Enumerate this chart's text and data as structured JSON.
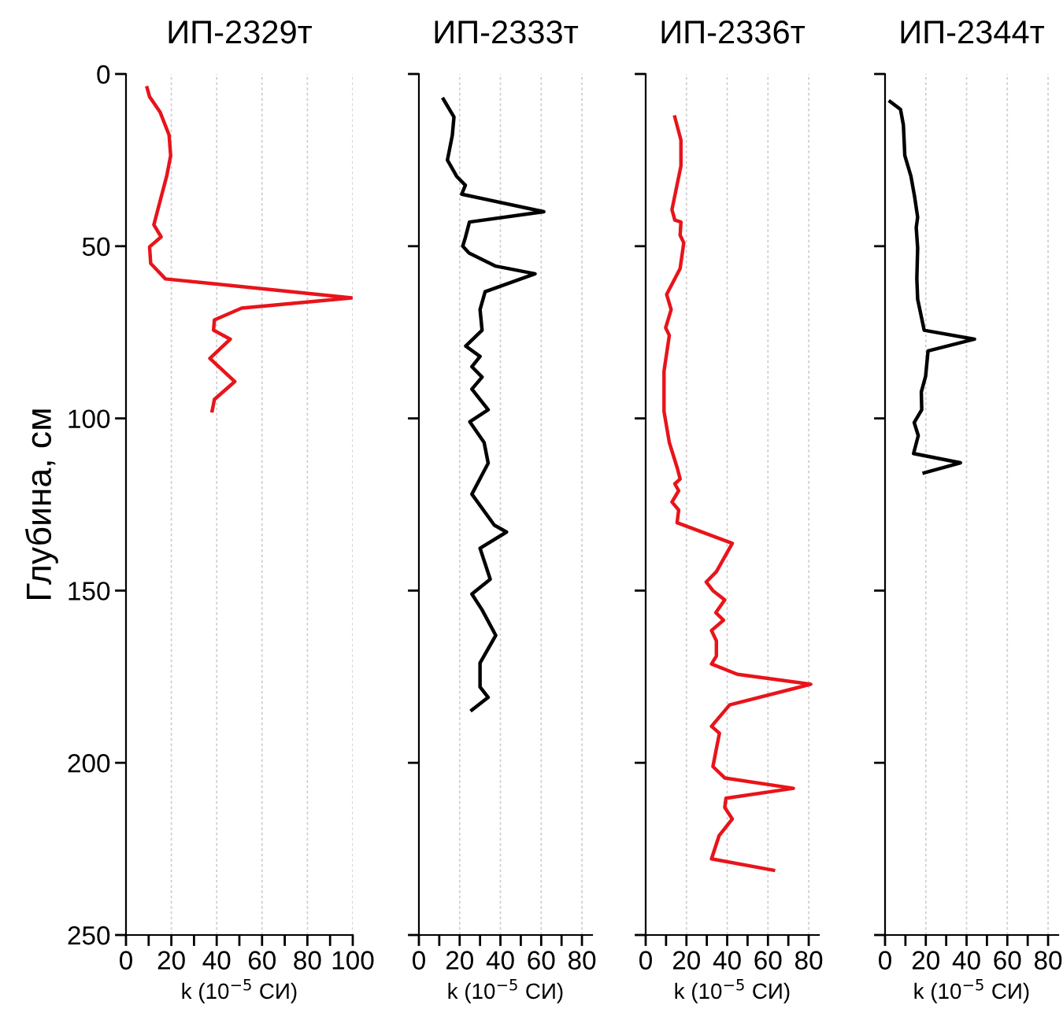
{
  "chart_data": [
    {
      "type": "line",
      "title": "ИП-2329т",
      "xlabel": "k (10$^{−5}$ СИ)",
      "ylabel": "Глубина, см",
      "xlim": [
        0,
        100
      ],
      "xticks": [
        0,
        {
          "value": 10,
          "label": null
        },
        20,
        {
          "value": 30,
          "label": null
        },
        40,
        {
          "value": 50,
          "label": null
        },
        60,
        {
          "value": 70,
          "label": null
        },
        80,
        {
          "value": 90,
          "label": null
        },
        100
      ],
      "ylim": [
        250,
        0
      ],
      "yticks": [
        0,
        50,
        100,
        150,
        200,
        250
      ],
      "grid": "x",
      "legend": false,
      "series": [
        {
          "color": "#e8141b",
          "x": [
            9.3,
            10.4,
            15,
            19,
            19.7,
            18,
            15,
            12.3,
            15.5,
            10.4,
            10.9,
            17.4,
            99.5,
            51,
            39,
            38.6,
            46,
            37,
            48,
            39,
            38
          ],
          "values": [
            4,
            6.6,
            11,
            17.7,
            23.7,
            29.5,
            37,
            43.8,
            47.3,
            50.2,
            55,
            59.5,
            65,
            68,
            71.4,
            74.4,
            77,
            82.6,
            89.3,
            94.5,
            97.8
          ]
        }
      ]
    },
    {
      "type": "line",
      "title": "ИП-2333т",
      "xlabel": "k (10$^{−5}$ СИ)",
      "xlim": [
        0,
        85
      ],
      "xticks": [
        0,
        {
          "value": 10,
          "label": null
        },
        20,
        {
          "value": 30,
          "label": null
        },
        40,
        {
          "value": 50,
          "label": null
        },
        60,
        {
          "value": 70,
          "label": null
        },
        80
      ],
      "ylim": [
        250,
        0
      ],
      "yticks": [
        0,
        50,
        100,
        150,
        200,
        250
      ],
      "tick_labels": "x",
      "grid": "x",
      "legend": false,
      "series": [
        {
          "color": "#000000",
          "x": [
            12,
            17.2,
            16.4,
            14,
            18.5,
            22.8,
            21,
            61.3,
            24.8,
            22.8,
            21.5,
            24.6,
            37.7,
            57,
            32.5,
            30,
            31,
            23,
            30,
            26,
            31,
            26,
            34,
            25,
            32,
            34,
            26,
            37,
            43,
            30,
            35,
            26,
            31,
            37.7,
            30,
            30,
            34,
            26
          ],
          "values": [
            7.3,
            12.5,
            17.8,
            25,
            29.7,
            32.3,
            34.9,
            40,
            43,
            47.5,
            50,
            52,
            55.8,
            58,
            63.2,
            68.4,
            74.4,
            79,
            82,
            85,
            88,
            91.5,
            97.5,
            101,
            107,
            113,
            122,
            131,
            133,
            137.7,
            146.7,
            151,
            155.6,
            163,
            171,
            178,
            181,
            184.7
          ]
        }
      ]
    },
    {
      "type": "line",
      "title": "ИП-2336т",
      "xlabel": "k (10$^{−5}$ СИ)",
      "xlim": [
        0,
        85
      ],
      "xticks": [
        0,
        {
          "value": 10,
          "label": null
        },
        20,
        {
          "value": 30,
          "label": null
        },
        40,
        {
          "value": 50,
          "label": null
        },
        60,
        {
          "value": 70,
          "label": null
        },
        80
      ],
      "ylim": [
        250,
        0
      ],
      "yticks": [
        0,
        50,
        100,
        150,
        200,
        250
      ],
      "tick_labels": "x",
      "grid": "x",
      "legend": false,
      "series": [
        {
          "color": "#e8141b",
          "x": [
            14.3,
            17.3,
            17.3,
            12.9,
            14.3,
            17.3,
            16.9,
            18.7,
            16.9,
            10.3,
            12.5,
            9.8,
            11.6,
            9,
            9,
            11.6,
            15.6,
            16.9,
            14.3,
            16.2,
            12.9,
            16.2,
            15.4,
            42.5,
            34.7,
            29.7,
            33,
            38.8,
            34.4,
            38.2,
            32.3,
            34.7,
            34.7,
            32.3,
            45,
            81,
            41.2,
            32.3,
            36.2,
            34.7,
            33,
            38.8,
            72.5,
            39.4,
            38.8,
            42.5,
            36,
            32.3,
            62.7
          ],
          "values": [
            12.5,
            19.2,
            26.7,
            39.4,
            42.4,
            43,
            46.8,
            49,
            56.5,
            64,
            68.4,
            73.7,
            75.9,
            86.3,
            98,
            107,
            114.6,
            117.6,
            119,
            121,
            124.3,
            126.6,
            130.3,
            136.3,
            144.5,
            147.5,
            150,
            152.7,
            156.4,
            158.6,
            161.6,
            164.6,
            169,
            171.3,
            174.3,
            177.2,
            183.2,
            189.4,
            191.4,
            195.9,
            201.1,
            204.4,
            207.4,
            210.3,
            213,
            216.3,
            221.2,
            227.9,
            231.2
          ]
        }
      ]
    },
    {
      "type": "line",
      "title": "ИП-2344т",
      "xlabel": "k (10$^{−5}$ СИ)",
      "xlim": [
        0,
        85
      ],
      "xticks": [
        0,
        {
          "value": 10,
          "label": null
        },
        20,
        {
          "value": 30,
          "label": null
        },
        40,
        {
          "value": 50,
          "label": null
        },
        60,
        {
          "value": 70,
          "label": null
        },
        80
      ],
      "ylim": [
        250,
        0
      ],
      "yticks": [
        0,
        50,
        100,
        150,
        200,
        250
      ],
      "tick_labels": "x",
      "grid": "x",
      "legend": false,
      "series": [
        {
          "color": "#000000",
          "x": [
            2.5,
            7.6,
            9,
            9.7,
            12.7,
            14.5,
            16,
            15.3,
            16,
            15.6,
            16,
            19.2,
            43.9,
            21.1,
            19.9,
            17.8,
            18,
            14.3,
            16.3,
            14,
            37,
            19.2
          ],
          "values": [
            8,
            10.3,
            14.8,
            23.7,
            29.7,
            35.6,
            41.6,
            44.6,
            50.5,
            59.5,
            65.4,
            74.4,
            77,
            80.4,
            87.8,
            92.3,
            97.5,
            101.2,
            105,
            110.2,
            112.9,
            115.8
          ]
        }
      ]
    }
  ]
}
